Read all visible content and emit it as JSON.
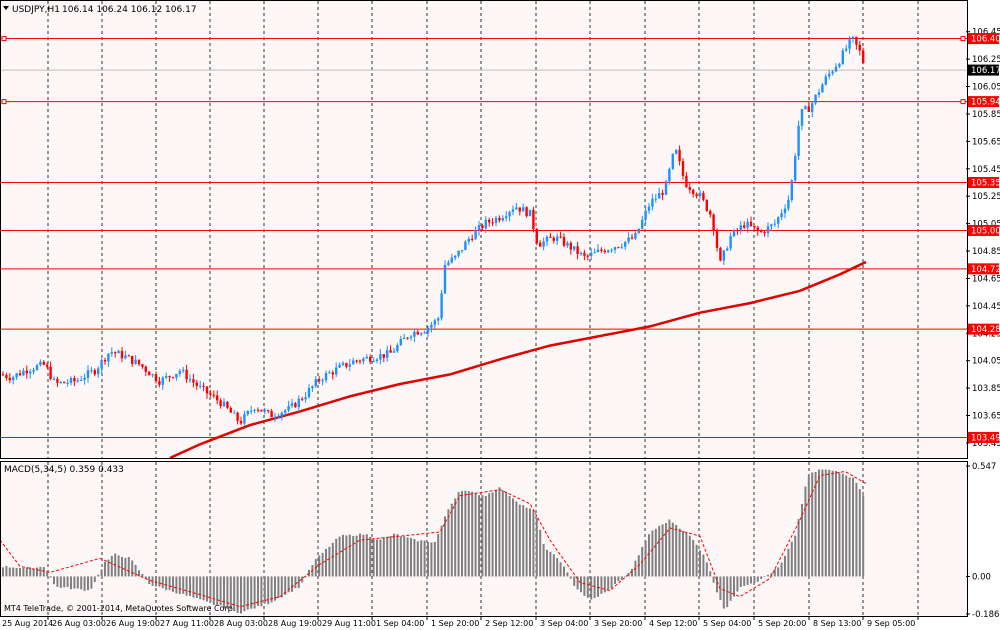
{
  "window": {
    "symbol_title": "USDJPY,H1",
    "ohlc_readout": "106.14 106.24 106.12 106.17",
    "copyright": "MT4 TeleTrade, © 2001-2014, MetaQuotes Software Corp."
  },
  "macd_panel": {
    "title": "MACD(5,34,5) 0.359 0.433"
  },
  "colors": {
    "background": "#fdf7f7",
    "grid": "#000000",
    "up_candle": "#1e90ff",
    "down_candle": "#ff0000",
    "moving_average": "#e00000",
    "horizontal_levels": "#ff0000",
    "current_price_line": "#c0c0c0",
    "histogram": "#808080",
    "signal_line": "#ff0000"
  },
  "chart_data": [
    {
      "type": "candlestick",
      "title": "USDJPY,H1",
      "ylim": [
        103.34,
        106.55
      ],
      "y_ticks": [
        "106.45",
        "106.25",
        "106.05",
        "105.85",
        "105.65",
        "105.45",
        "105.25",
        "105.05",
        "104.85",
        "104.65",
        "104.45",
        "104.25",
        "104.05",
        "103.85",
        "103.65",
        "103.45"
      ],
      "current_price": "106.17",
      "horizontal_levels": [
        "106.40",
        "105.94",
        "105.35",
        "105.00",
        "104.72",
        "104.28",
        "103.49"
      ],
      "x_labels": [
        "25 Aug 2014",
        "26 Aug 03:00",
        "26 Aug 19:00",
        "27 Aug 11:00",
        "28 Aug 03:00",
        "28 Aug 19:00",
        "29 Aug 11:00",
        "1 Sep 04:00",
        "1 Sep 20:00",
        "2 Sep 12:00",
        "3 Sep 04:00",
        "3 Sep 20:00",
        "4 Sep 12:00",
        "5 Sep 04:00",
        "5 Sep 20:00",
        "8 Sep 13:00",
        "9 Sep 05:00"
      ],
      "price_path": [
        [
          0,
          103.95
        ],
        [
          12,
          103.93
        ],
        [
          25,
          103.98
        ],
        [
          33,
          104.0
        ],
        [
          45,
          104.02
        ],
        [
          55,
          103.88
        ],
        [
          75,
          103.9
        ],
        [
          95,
          103.98
        ],
        [
          110,
          104.12
        ],
        [
          125,
          104.08
        ],
        [
          140,
          104.02
        ],
        [
          160,
          103.9
        ],
        [
          180,
          103.98
        ],
        [
          200,
          103.85
        ],
        [
          220,
          103.75
        ],
        [
          240,
          103.6
        ],
        [
          255,
          103.72
        ],
        [
          270,
          103.65
        ],
        [
          290,
          103.7
        ],
        [
          305,
          103.8
        ],
        [
          320,
          103.92
        ],
        [
          340,
          104.0
        ],
        [
          355,
          104.05
        ],
        [
          375,
          104.08
        ],
        [
          390,
          104.1
        ],
        [
          410,
          104.25
        ],
        [
          425,
          104.28
        ],
        [
          438,
          104.35
        ],
        [
          445,
          104.75
        ],
        [
          455,
          104.8
        ],
        [
          470,
          104.95
        ],
        [
          485,
          105.05
        ],
        [
          500,
          105.1
        ],
        [
          515,
          105.18
        ],
        [
          530,
          105.12
        ],
        [
          538,
          104.9
        ],
        [
          555,
          104.95
        ],
        [
          570,
          104.88
        ],
        [
          585,
          104.8
        ],
        [
          600,
          104.85
        ],
        [
          620,
          104.9
        ],
        [
          635,
          104.95
        ],
        [
          650,
          105.2
        ],
        [
          665,
          105.3
        ],
        [
          675,
          105.6
        ],
        [
          685,
          105.35
        ],
        [
          700,
          105.25
        ],
        [
          712,
          105.1
        ],
        [
          720,
          104.75
        ],
        [
          730,
          104.95
        ],
        [
          745,
          105.05
        ],
        [
          760,
          104.98
        ],
        [
          775,
          105.05
        ],
        [
          790,
          105.25
        ],
        [
          800,
          105.85
        ],
        [
          810,
          105.9
        ],
        [
          825,
          106.1
        ],
        [
          840,
          106.25
        ],
        [
          852,
          106.4
        ],
        [
          860,
          106.3
        ],
        [
          866,
          106.17
        ]
      ],
      "moving_average_path": [
        [
          170,
          103.34
        ],
        [
          200,
          103.44
        ],
        [
          250,
          103.58
        ],
        [
          300,
          103.68
        ],
        [
          350,
          103.79
        ],
        [
          400,
          103.88
        ],
        [
          450,
          103.95
        ],
        [
          500,
          104.06
        ],
        [
          550,
          104.16
        ],
        [
          600,
          104.23
        ],
        [
          650,
          104.3
        ],
        [
          700,
          104.4
        ],
        [
          750,
          104.47
        ],
        [
          800,
          104.56
        ],
        [
          840,
          104.68
        ],
        [
          866,
          104.77
        ]
      ]
    },
    {
      "type": "bar",
      "title": "MACD(5,34,5)",
      "macd": 0.359,
      "signal": 0.433,
      "ylim": [
        -0.186,
        0.547
      ],
      "y_ticks": [
        "0.547",
        "0.00",
        "-0.186"
      ],
      "histogram_path": [
        [
          0,
          0.05
        ],
        [
          30,
          0.04
        ],
        [
          45,
          0.05
        ],
        [
          55,
          -0.05
        ],
        [
          90,
          -0.07
        ],
        [
          105,
          0.07
        ],
        [
          115,
          0.11
        ],
        [
          130,
          0.09
        ],
        [
          150,
          -0.04
        ],
        [
          190,
          -0.1
        ],
        [
          240,
          -0.18
        ],
        [
          270,
          -0.13
        ],
        [
          300,
          -0.05
        ],
        [
          315,
          0.08
        ],
        [
          340,
          0.2
        ],
        [
          365,
          0.21
        ],
        [
          380,
          0.18
        ],
        [
          395,
          0.21
        ],
        [
          415,
          0.18
        ],
        [
          435,
          0.17
        ],
        [
          448,
          0.33
        ],
        [
          460,
          0.43
        ],
        [
          485,
          0.4
        ],
        [
          500,
          0.44
        ],
        [
          520,
          0.36
        ],
        [
          535,
          0.32
        ],
        [
          545,
          0.14
        ],
        [
          560,
          0.08
        ],
        [
          575,
          -0.05
        ],
        [
          590,
          -0.12
        ],
        [
          605,
          -0.08
        ],
        [
          630,
          0.02
        ],
        [
          650,
          0.22
        ],
        [
          670,
          0.28
        ],
        [
          690,
          0.2
        ],
        [
          705,
          0.1
        ],
        [
          715,
          -0.05
        ],
        [
          725,
          -0.17
        ],
        [
          740,
          -0.05
        ],
        [
          760,
          -0.02
        ],
        [
          780,
          0.05
        ],
        [
          795,
          0.2
        ],
        [
          808,
          0.5
        ],
        [
          820,
          0.53
        ],
        [
          840,
          0.52
        ],
        [
          855,
          0.48
        ],
        [
          866,
          0.38
        ]
      ],
      "signal_path": [
        [
          0,
          0.18
        ],
        [
          20,
          0.05
        ],
        [
          50,
          0.02
        ],
        [
          100,
          0.09
        ],
        [
          150,
          -0.02
        ],
        [
          200,
          -0.09
        ],
        [
          240,
          -0.15
        ],
        [
          280,
          -0.1
        ],
        [
          320,
          0.06
        ],
        [
          360,
          0.18
        ],
        [
          400,
          0.2
        ],
        [
          440,
          0.22
        ],
        [
          460,
          0.4
        ],
        [
          500,
          0.43
        ],
        [
          530,
          0.36
        ],
        [
          550,
          0.18
        ],
        [
          580,
          -0.03
        ],
        [
          610,
          -0.07
        ],
        [
          640,
          0.06
        ],
        [
          670,
          0.24
        ],
        [
          700,
          0.2
        ],
        [
          720,
          -0.06
        ],
        [
          740,
          -0.1
        ],
        [
          770,
          -0.01
        ],
        [
          800,
          0.28
        ],
        [
          820,
          0.5
        ],
        [
          845,
          0.52
        ],
        [
          866,
          0.46
        ]
      ]
    }
  ]
}
